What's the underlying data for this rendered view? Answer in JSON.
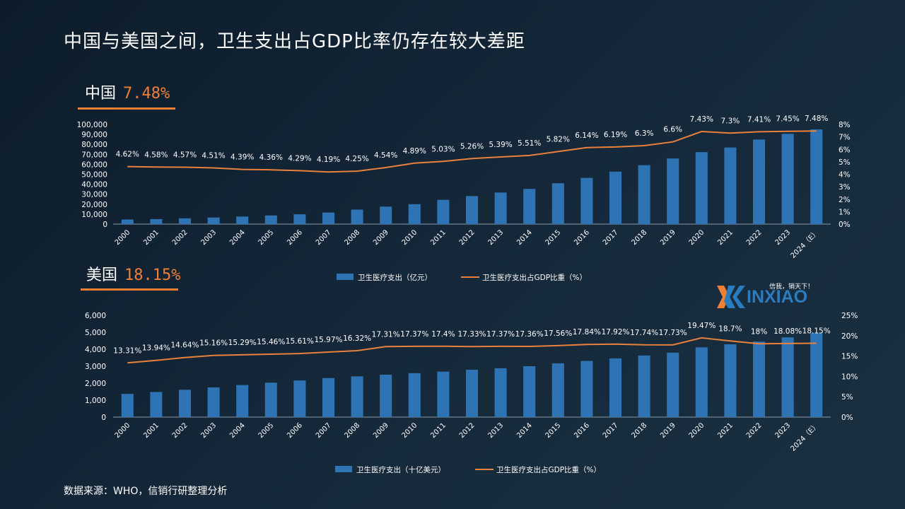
{
  "title": "中国与美国之间，卫生支出占GDP比率仍存在较大差距",
  "source": "数据来源：WHO，信销行研整理分析",
  "logo": {
    "text": "INXIAO",
    "slogan": "信我，销天下！",
    "colors": {
      "orange": "#f07f36",
      "blue": "#2b7bbf"
    }
  },
  "sections": {
    "china": {
      "label": "中国",
      "value": "7.48%"
    },
    "usa": {
      "label": "美国",
      "value": "18.15%"
    }
  },
  "colors": {
    "bar": "#2e74b5",
    "line": "#e9803d",
    "accent": "#f07f36"
  },
  "chart_data": [
    {
      "id": "china",
      "type": "bar",
      "categories": [
        "2000",
        "2001",
        "2002",
        "2003",
        "2004",
        "2005",
        "2006",
        "2007",
        "2008",
        "2009",
        "2010",
        "2011",
        "2012",
        "2013",
        "2014",
        "2015",
        "2016",
        "2017",
        "2018",
        "2019",
        "2020",
        "2021",
        "2022",
        "2023",
        "2024（E）"
      ],
      "ylim": [
        0,
        100000
      ],
      "y2lim": [
        0,
        8
      ],
      "y_ticks": [
        "0",
        "10,000",
        "20,000",
        "30,000",
        "40,000",
        "50,000",
        "60,000",
        "70,000",
        "80,000",
        "90,000",
        "100,000"
      ],
      "y2_ticks": [
        "0%",
        "1%",
        "2%",
        "3%",
        "4%",
        "5%",
        "6%",
        "7%",
        "8%"
      ],
      "legend": "bottom",
      "series": [
        {
          "name": "卫生医疗支出（亿元）",
          "type": "bar",
          "values": [
            4587,
            5026,
            5790,
            6584,
            7590,
            8660,
            9843,
            11574,
            14535,
            17542,
            19980,
            24346,
            28119,
            31669,
            35312,
            40975,
            46345,
            52598,
            59122,
            65841,
            72175,
            76845,
            84846,
            90576,
            95000
          ]
        },
        {
          "name": "卫生医疗支出占GDP比重（%）",
          "type": "line",
          "values": [
            4.62,
            4.58,
            4.57,
            4.51,
            4.39,
            4.36,
            4.29,
            4.19,
            4.25,
            4.54,
            4.89,
            5.03,
            5.26,
            5.39,
            5.51,
            5.82,
            6.14,
            6.19,
            6.3,
            6.6,
            7.43,
            7.3,
            7.41,
            7.45,
            7.48
          ],
          "labels": [
            "4.62%",
            "4.58%",
            "4.57%",
            "4.51%",
            "4.39%",
            "4.36%",
            "4.29%",
            "4.19%",
            "4.25%",
            "4.54%",
            "4.89%",
            "5.03%",
            "5.26%",
            "5.39%",
            "5.51%",
            "5.82%",
            "6.14%",
            "6.19%",
            "6.3%",
            "6.6%",
            "7.43%",
            "7.3%",
            "7.41%",
            "7.45%",
            "7.48%"
          ]
        }
      ]
    },
    {
      "id": "usa",
      "type": "bar",
      "categories": [
        "2000",
        "2001",
        "2002",
        "2003",
        "2004",
        "2005",
        "2006",
        "2007",
        "2008",
        "2009",
        "2010",
        "2011",
        "2012",
        "2013",
        "2014",
        "2015",
        "2016",
        "2017",
        "2018",
        "2019",
        "2020",
        "2021",
        "2022",
        "2023",
        "2024（E）"
      ],
      "ylim": [
        0,
        6000
      ],
      "y2lim": [
        0,
        25
      ],
      "y_ticks": [
        "0",
        "1,000",
        "2,000",
        "3,000",
        "4,000",
        "5,000",
        "6,000"
      ],
      "y2_ticks": [
        "0%",
        "5%",
        "10%",
        "15%",
        "20%",
        "25%"
      ],
      "legend": "bottom",
      "series": [
        {
          "name": "卫生医疗支出（十亿美元）",
          "type": "bar",
          "values": [
            1366,
            1480,
            1610,
            1750,
            1890,
            2030,
            2160,
            2300,
            2400,
            2500,
            2590,
            2680,
            2790,
            2880,
            3000,
            3170,
            3310,
            3460,
            3630,
            3800,
            4110,
            4290,
            4450,
            4700,
            4950
          ]
        },
        {
          "name": "卫生医疗支出占GDP比重（%）",
          "type": "line",
          "values": [
            13.31,
            13.94,
            14.64,
            15.16,
            15.29,
            15.46,
            15.61,
            15.97,
            16.32,
            17.31,
            17.37,
            17.4,
            17.33,
            17.37,
            17.36,
            17.56,
            17.84,
            17.92,
            17.74,
            17.73,
            19.47,
            18.7,
            18,
            18.08,
            18.15
          ],
          "labels": [
            "13.31%",
            "13.94%",
            "14.64%",
            "15.16%",
            "15.29%",
            "15.46%",
            "15.61%",
            "15.97%",
            "16.32%",
            "17.31%",
            "17.37%",
            "17.4%",
            "17.33%",
            "17.37%",
            "17.36%",
            "17.56%",
            "17.84%",
            "17.92%",
            "17.74%",
            "17.73%",
            "19.47%",
            "18.7%",
            "18%",
            "18.08%",
            "18.15%"
          ]
        }
      ]
    }
  ]
}
